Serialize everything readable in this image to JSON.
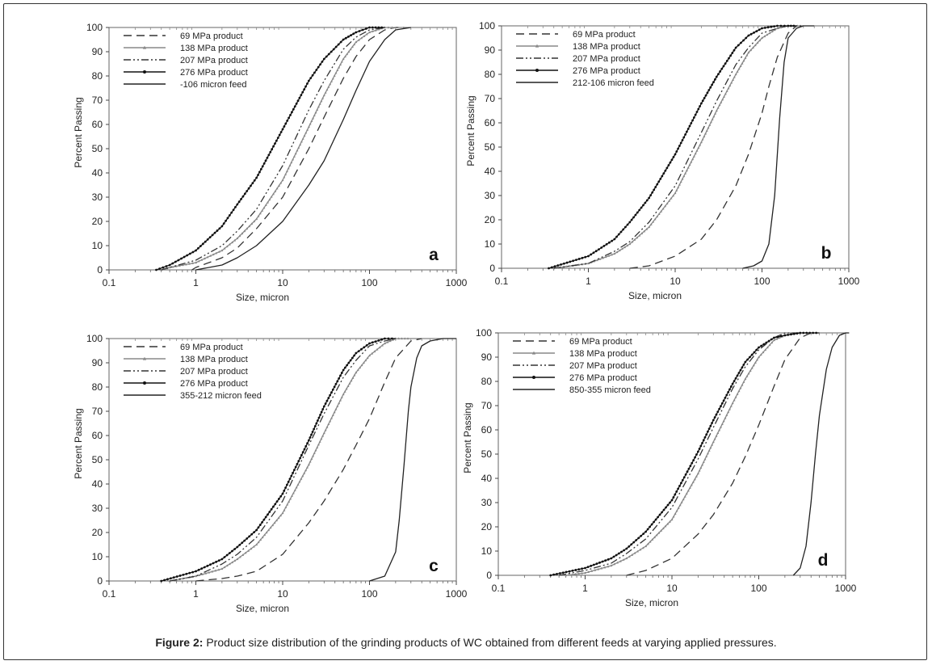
{
  "figure": {
    "caption_label": "Figure 2:",
    "caption_text": "Product size distribution of the grinding products of WC obtained from different feeds at varying applied pressures."
  },
  "chart_data": [
    {
      "type": "line",
      "panel_label": "a",
      "xscale": "log",
      "xlim": [
        0.1,
        1000
      ],
      "ylim": [
        0,
        100
      ],
      "xlabel": "Size, micron",
      "ylabel": "Percent Passing",
      "xticks": [
        "0.1",
        "1",
        "10",
        "100",
        "1000"
      ],
      "yticks": [
        "0",
        "10",
        "20",
        "30",
        "40",
        "50",
        "60",
        "70",
        "80",
        "90",
        "100"
      ],
      "legend_position": "top-left",
      "series": [
        {
          "name": "69 MPa product",
          "style": "dash",
          "color": "#333333",
          "x": [
            0.9,
            1,
            2,
            3,
            5,
            10,
            20,
            30,
            50,
            70,
            100,
            150,
            200,
            250
          ],
          "y": [
            0,
            1,
            5,
            9,
            17,
            30,
            50,
            63,
            79,
            88,
            95,
            99,
            100,
            100
          ]
        },
        {
          "name": "138 MPa product",
          "style": "solid-tri",
          "color": "#888888",
          "x": [
            0.4,
            0.5,
            1,
            2,
            3,
            5,
            10,
            20,
            30,
            50,
            70,
            100,
            150,
            200
          ],
          "y": [
            0,
            1,
            3,
            8,
            13,
            21,
            37,
            59,
            72,
            87,
            94,
            98,
            100,
            100
          ]
        },
        {
          "name": "207 MPa product",
          "style": "dash-dot-dot",
          "color": "#333333",
          "x": [
            0.4,
            0.5,
            1,
            2,
            3,
            5,
            10,
            20,
            30,
            50,
            70,
            100,
            150
          ],
          "y": [
            0,
            1,
            4,
            10,
            16,
            25,
            43,
            66,
            78,
            91,
            96,
            99,
            100
          ]
        },
        {
          "name": "276 MPa product",
          "style": "solid-dot",
          "color": "#111111",
          "x": [
            0.35,
            0.5,
            1,
            2,
            3,
            5,
            10,
            20,
            30,
            50,
            70,
            100,
            150
          ],
          "y": [
            0,
            2,
            8,
            18,
            27,
            38,
            58,
            78,
            87,
            95,
            98,
            100,
            100
          ]
        },
        {
          "name": "-106 micron feed",
          "style": "solid",
          "color": "#222222",
          "x": [
            1,
            2,
            3,
            5,
            10,
            20,
            30,
            50,
            70,
            100,
            150,
            200,
            300
          ],
          "y": [
            0,
            2,
            5,
            10,
            20,
            35,
            45,
            62,
            74,
            86,
            95,
            99,
            100
          ]
        }
      ]
    },
    {
      "type": "line",
      "panel_label": "b",
      "xscale": "log",
      "xlim": [
        0.1,
        1000
      ],
      "ylim": [
        0,
        100
      ],
      "xlabel": "Size,  micron",
      "ylabel": "Percent Passing",
      "xticks": [
        "0.1",
        "1",
        "10",
        "100",
        "1000"
      ],
      "yticks": [
        "0",
        "10",
        "20",
        "30",
        "40",
        "50",
        "60",
        "70",
        "80",
        "90",
        "100"
      ],
      "legend_position": "top-left",
      "series": [
        {
          "name": "69 MPa product",
          "style": "dash",
          "color": "#333333",
          "x": [
            3,
            5,
            10,
            20,
            30,
            50,
            70,
            100,
            120,
            150,
            200,
            250
          ],
          "y": [
            0,
            1,
            5,
            12,
            20,
            34,
            47,
            64,
            75,
            87,
            97,
            100
          ]
        },
        {
          "name": "138 MPa product",
          "style": "solid-tri",
          "color": "#888888",
          "x": [
            0.4,
            1,
            2,
            3,
            5,
            10,
            20,
            30,
            50,
            70,
            100,
            150,
            200,
            300
          ],
          "y": [
            0,
            2,
            6,
            10,
            17,
            31,
            52,
            65,
            80,
            89,
            95,
            99,
            100,
            100
          ]
        },
        {
          "name": "207 MPa product",
          "style": "dash-dot-dot",
          "color": "#333333",
          "x": [
            0.4,
            1,
            2,
            3,
            5,
            10,
            20,
            30,
            50,
            70,
            100,
            150,
            200,
            300
          ],
          "y": [
            0,
            2,
            7,
            11,
            19,
            34,
            56,
            69,
            84,
            91,
            97,
            99,
            100,
            100
          ]
        },
        {
          "name": "276 MPa product",
          "style": "solid-dot",
          "color": "#111111",
          "x": [
            0.35,
            1,
            2,
            3,
            5,
            10,
            20,
            30,
            50,
            70,
            100,
            150,
            200,
            250
          ],
          "y": [
            0,
            5,
            12,
            19,
            29,
            47,
            68,
            79,
            91,
            96,
            99,
            100,
            100,
            100
          ]
        },
        {
          "name": "212-106 micron feed",
          "style": "solid",
          "color": "#222222",
          "x": [
            60,
            80,
            100,
            120,
            140,
            160,
            180,
            200,
            250,
            300,
            400
          ],
          "y": [
            0,
            1,
            3,
            10,
            30,
            62,
            85,
            95,
            99,
            100,
            100
          ]
        }
      ]
    },
    {
      "type": "line",
      "panel_label": "c",
      "xscale": "log",
      "xlim": [
        0.1,
        1000
      ],
      "ylim": [
        0,
        100
      ],
      "xlabel": "Size, micron",
      "ylabel": "Percent Passing",
      "xticks": [
        "0.1",
        "1",
        "10",
        "100",
        "1000"
      ],
      "yticks": [
        "0",
        "10",
        "20",
        "30",
        "40",
        "50",
        "60",
        "70",
        "80",
        "90",
        "100"
      ],
      "legend_position": "top-left",
      "series": [
        {
          "name": "69 MPa product",
          "style": "dash",
          "color": "#333333",
          "x": [
            1,
            2,
            3,
            5,
            10,
            20,
            30,
            50,
            70,
            100,
            150,
            200,
            300,
            400
          ],
          "y": [
            0,
            1,
            2,
            4,
            11,
            24,
            33,
            46,
            56,
            67,
            82,
            92,
            99,
            100
          ]
        },
        {
          "name": "138 MPa product",
          "style": "solid-tri",
          "color": "#888888",
          "x": [
            0.5,
            1,
            2,
            3,
            5,
            10,
            20,
            30,
            50,
            70,
            100,
            150,
            200,
            300
          ],
          "y": [
            0,
            2,
            5,
            9,
            15,
            28,
            48,
            61,
            77,
            86,
            93,
            98,
            100,
            100
          ]
        },
        {
          "name": "207 MPa product",
          "style": "dash-dot-dot",
          "color": "#333333",
          "x": [
            0.5,
            1,
            2,
            3,
            5,
            10,
            20,
            30,
            50,
            70,
            100,
            150,
            200
          ],
          "y": [
            0,
            2,
            7,
            11,
            18,
            33,
            56,
            69,
            84,
            91,
            97,
            99,
            100
          ]
        },
        {
          "name": "276 MPa product",
          "style": "solid-dot",
          "color": "#111111",
          "x": [
            0.4,
            1,
            2,
            3,
            5,
            10,
            20,
            30,
            50,
            70,
            100,
            150,
            200
          ],
          "y": [
            0,
            4,
            9,
            14,
            21,
            36,
            58,
            72,
            87,
            94,
            98,
            100,
            100
          ]
        },
        {
          "name": "355-212 micron feed",
          "style": "solid",
          "color": "#222222",
          "x": [
            100,
            150,
            200,
            220,
            250,
            280,
            300,
            350,
            400,
            500,
            700,
            1000
          ],
          "y": [
            0,
            2,
            12,
            25,
            48,
            70,
            80,
            92,
            97,
            99,
            100,
            100
          ]
        }
      ]
    },
    {
      "type": "line",
      "panel_label": "d",
      "xscale": "log",
      "xlim": [
        0.1,
        1000
      ],
      "ylim": [
        0,
        100
      ],
      "xlabel": "Size, micron",
      "ylabel": "Percent Passing",
      "xticks": [
        "0.1",
        "1",
        "10",
        "100",
        "1000"
      ],
      "yticks": [
        "0",
        "10",
        "20",
        "30",
        "40",
        "50",
        "60",
        "70",
        "80",
        "90",
        "100"
      ],
      "legend_position": "top-left",
      "series": [
        {
          "name": "69 MPa product",
          "style": "dash",
          "color": "#333333",
          "x": [
            3,
            5,
            10,
            20,
            30,
            50,
            70,
            100,
            150,
            200,
            300,
            400
          ],
          "y": [
            0,
            2,
            7,
            17,
            25,
            38,
            49,
            62,
            78,
            89,
            98,
            100
          ]
        },
        {
          "name": "138 MPa product",
          "style": "solid-tri",
          "color": "#888888",
          "x": [
            0.6,
            1,
            2,
            3,
            5,
            10,
            20,
            30,
            50,
            70,
            100,
            150,
            200,
            300
          ],
          "y": [
            0,
            1,
            4,
            7,
            12,
            23,
            42,
            55,
            71,
            81,
            90,
            97,
            99,
            100
          ]
        },
        {
          "name": "207 MPa product",
          "style": "dash-dot-dot",
          "color": "#333333",
          "x": [
            0.5,
            1,
            2,
            3,
            5,
            10,
            20,
            30,
            50,
            70,
            100,
            150,
            200,
            300
          ],
          "y": [
            0,
            2,
            5,
            9,
            15,
            28,
            48,
            61,
            77,
            86,
            93,
            98,
            100,
            100
          ]
        },
        {
          "name": "276 MPa product",
          "style": "solid-dot",
          "color": "#111111",
          "x": [
            0.4,
            1,
            2,
            3,
            5,
            10,
            20,
            30,
            50,
            70,
            100,
            150,
            200,
            300,
            500
          ],
          "y": [
            0,
            3,
            7,
            11,
            18,
            31,
            51,
            64,
            79,
            88,
            94,
            98,
            99,
            100,
            100
          ]
        },
        {
          "name": "850-355 micron feed",
          "style": "solid",
          "color": "#222222",
          "x": [
            250,
            300,
            350,
            400,
            450,
            500,
            600,
            700,
            850,
            1000,
            1100
          ],
          "y": [
            0,
            3,
            12,
            30,
            50,
            66,
            85,
            94,
            99,
            100,
            100
          ]
        }
      ]
    }
  ]
}
